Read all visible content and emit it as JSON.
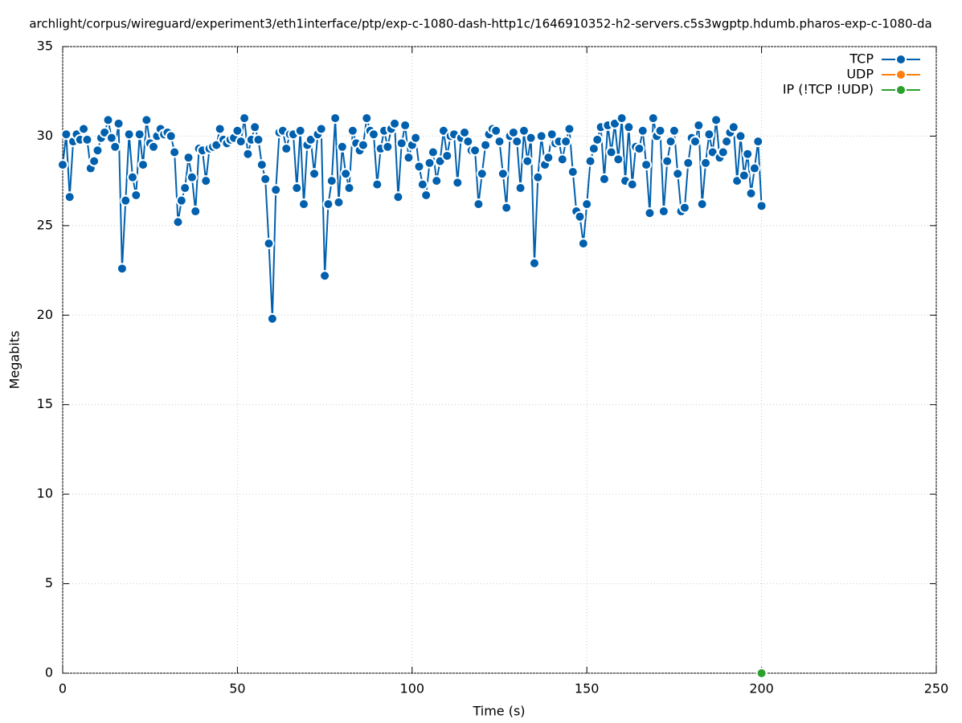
{
  "chart_data": {
    "type": "line",
    "title": "archlight/corpus/wireguard/experiment3/eth1interface/ptp/exp-c-1080-dash-http1c/1646910352-h2-servers.c5s3wgptp.hdumb.pharos-exp-c-1080-da",
    "x_label": "Time (s)",
    "y_label": "Megabits",
    "xlim": [
      0,
      250
    ],
    "xticks": [
      0,
      50,
      100,
      150,
      200,
      250
    ],
    "ylim": [
      0,
      35
    ],
    "yticks": [
      0,
      5,
      10,
      15,
      20,
      25,
      30,
      35
    ],
    "grid": true,
    "legend": "top-right",
    "series": [
      {
        "name": "TCP",
        "color": "#0060ad",
        "x": [
          0,
          1,
          2,
          3,
          4,
          5,
          6,
          7,
          8,
          9,
          10,
          11,
          12,
          13,
          14,
          15,
          16,
          17,
          18,
          19,
          20,
          21,
          22,
          23,
          24,
          25,
          26,
          27,
          28,
          29,
          30,
          31,
          32,
          33,
          34,
          35,
          36,
          37,
          38,
          39,
          40,
          41,
          42,
          43,
          44,
          45,
          46,
          47,
          48,
          49,
          50,
          51,
          52,
          53,
          54,
          55,
          56,
          57,
          58,
          59,
          60,
          61,
          62,
          63,
          64,
          65,
          66,
          67,
          68,
          69,
          70,
          71,
          72,
          73,
          74,
          75,
          76,
          77,
          78,
          79,
          80,
          81,
          82,
          83,
          84,
          85,
          86,
          87,
          88,
          89,
          90,
          91,
          92,
          93,
          94,
          95,
          96,
          97,
          98,
          99,
          100,
          101,
          102,
          103,
          104,
          105,
          106,
          107,
          108,
          109,
          110,
          111,
          112,
          113,
          114,
          115,
          116,
          117,
          118,
          119,
          120,
          121,
          122,
          123,
          124,
          125,
          126,
          127,
          128,
          129,
          130,
          131,
          132,
          133,
          134,
          135,
          136,
          137,
          138,
          139,
          140,
          141,
          142,
          143,
          144,
          145,
          146,
          147,
          148,
          149,
          150,
          151,
          152,
          153,
          154,
          155,
          156,
          157,
          158,
          159,
          160,
          161,
          162,
          163,
          164,
          165,
          166,
          167,
          168,
          169,
          170,
          171,
          172,
          173,
          174,
          175,
          176,
          177,
          178,
          179,
          180,
          181,
          182,
          183,
          184,
          185,
          186,
          187,
          188,
          189,
          190,
          191,
          192,
          193,
          194,
          195,
          196,
          197,
          198,
          199,
          200
        ],
        "values": [
          28.4,
          30.1,
          26.6,
          29.7,
          30.1,
          29.8,
          30.4,
          29.8,
          28.2,
          28.6,
          29.2,
          29.9,
          30.2,
          30.9,
          29.9,
          29.4,
          30.7,
          22.6,
          26.4,
          30.1,
          27.7,
          26.7,
          30.1,
          28.4,
          30.9,
          29.6,
          29.4,
          30.0,
          30.4,
          30.1,
          30.2,
          30.0,
          29.1,
          25.2,
          26.4,
          27.1,
          28.8,
          27.7,
          25.8,
          29.3,
          29.2,
          27.5,
          29.3,
          29.4,
          29.5,
          30.4,
          29.8,
          29.6,
          29.8,
          29.9,
          30.3,
          29.7,
          31.0,
          29.0,
          29.8,
          30.5,
          29.8,
          28.4,
          27.6,
          24.0,
          19.8,
          27.0,
          30.2,
          30.3,
          29.3,
          30.1,
          30.1,
          27.1,
          30.3,
          26.2,
          29.5,
          29.8,
          27.9,
          30.1,
          30.4,
          22.2,
          26.2,
          27.5,
          31.0,
          26.3,
          29.4,
          27.9,
          27.1,
          30.3,
          29.6,
          29.2,
          29.5,
          31.0,
          30.3,
          30.1,
          27.3,
          29.3,
          30.3,
          29.4,
          30.4,
          30.7,
          26.6,
          29.6,
          30.6,
          28.8,
          29.5,
          29.9,
          28.3,
          27.3,
          26.7,
          28.5,
          29.1,
          27.5,
          28.6,
          30.3,
          28.9,
          30.0,
          30.1,
          27.4,
          29.9,
          30.2,
          29.7,
          29.2,
          29.2,
          26.2,
          27.9,
          29.5,
          30.1,
          30.4,
          30.3,
          29.7,
          27.9,
          26.0,
          30.0,
          30.2,
          29.7,
          27.1,
          30.3,
          28.6,
          29.9,
          22.9,
          27.7,
          30.0,
          28.4,
          28.8,
          30.1,
          29.6,
          29.7,
          28.7,
          29.7,
          30.4,
          28.0,
          25.8,
          25.5,
          24.0,
          26.2,
          28.6,
          29.3,
          29.8,
          30.5,
          27.6,
          30.6,
          29.1,
          30.7,
          28.7,
          31.0,
          27.5,
          30.5,
          27.3,
          29.4,
          29.3,
          30.3,
          28.4,
          25.7,
          31.0,
          30.0,
          30.3,
          25.8,
          28.6,
          29.7,
          30.3,
          27.9,
          25.8,
          26.0,
          28.5,
          29.9,
          29.7,
          30.6,
          26.2,
          28.5,
          30.1,
          29.1,
          30.9,
          28.8,
          29.1,
          29.7,
          30.2,
          30.5,
          27.5,
          30.0,
          27.8,
          29.0,
          26.8,
          28.2,
          29.7,
          26.1
        ]
      },
      {
        "name": "UDP",
        "color": "#ff7f0e",
        "x": [],
        "values": []
      },
      {
        "name": "IP (!TCP  !UDP)",
        "color": "#2ca02c",
        "x": [
          200
        ],
        "values": [
          0
        ]
      }
    ]
  }
}
